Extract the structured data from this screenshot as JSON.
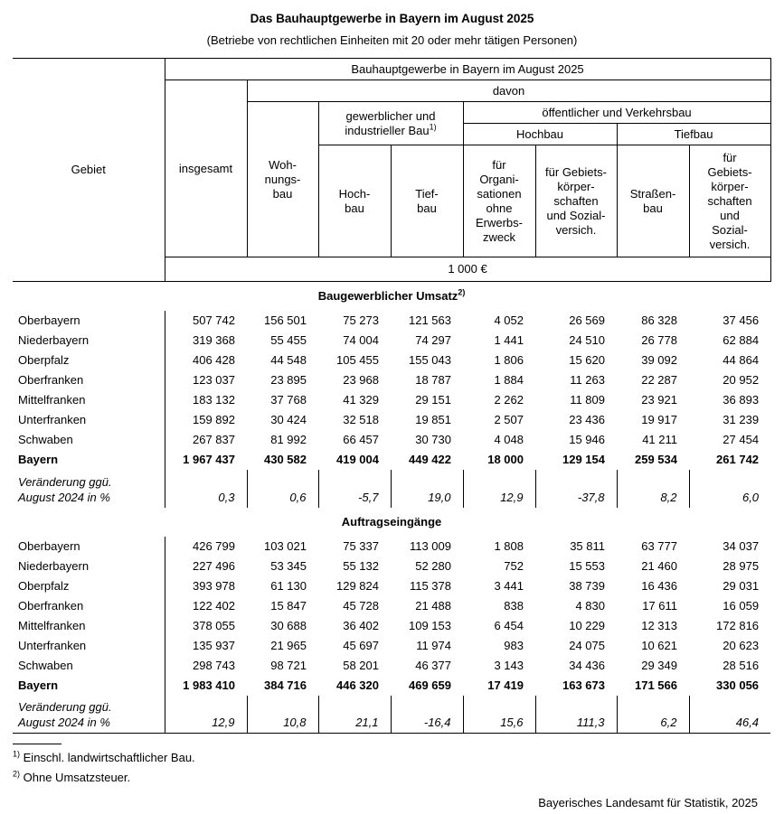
{
  "colors": {
    "text": "#000000",
    "background": "#ffffff",
    "border": "#000000"
  },
  "title": "Das Bauhauptgewerbe in Bayern im August 2025",
  "subtitle": "(Betriebe von rechtlichen Einheiten mit 20 oder mehr tätigen Personen)",
  "header": {
    "gebiet": "Gebiet",
    "top_span": "Bauhauptgewerbe in Bayern im August 2025",
    "davon": "davon",
    "insgesamt": "insgesamt",
    "wohnungsbau": "Woh-\nnungs-\nbau",
    "gewerblich": {
      "label": "gewerblicher und\nindustrieller Bau",
      "sup": "1)"
    },
    "oeffentlich": "öffentlicher und Verkehrsbau",
    "hochbau_group": "Hochbau",
    "tiefbau_group": "Tiefbau",
    "leaf_hochbau": "Hoch-\nbau",
    "leaf_tiefbau": "Tief-\nbau",
    "leaf_organisationen": "für\nOrgani-\nsationen\nohne\nErwerbs-\nzweck",
    "leaf_gebiets_hochbau": "für Gebiets-\nkörper-\nschaften\nund Sozial-\nversich.",
    "leaf_strassenbau": "Straßen-\nbau",
    "leaf_gebiets_tiefbau": "für\nGebiets-\nkörper-\nschaften\nund\nSozial-\nversich.",
    "unit": "1 000 €"
  },
  "table": {
    "sections": [
      {
        "title": "Baugewerblicher Umsatz",
        "title_sup": "2)",
        "rows": [
          {
            "label": "Oberbayern",
            "bold": false,
            "values": [
              "507 742",
              "156 501",
              "75 273",
              "121 563",
              "4 052",
              "26 569",
              "86 328",
              "37 456"
            ]
          },
          {
            "label": "Niederbayern",
            "bold": false,
            "values": [
              "319 368",
              "55 455",
              "74 004",
              "74 297",
              "1 441",
              "24 510",
              "26 778",
              "62 884"
            ]
          },
          {
            "label": "Oberpfalz",
            "bold": false,
            "values": [
              "406 428",
              "44 548",
              "105 455",
              "155 043",
              "1 806",
              "15 620",
              "39 092",
              "44 864"
            ]
          },
          {
            "label": "Oberfranken",
            "bold": false,
            "values": [
              "123 037",
              "23 895",
              "23 968",
              "18 787",
              "1 884",
              "11 263",
              "22 287",
              "20 952"
            ]
          },
          {
            "label": "Mittelfranken",
            "bold": false,
            "values": [
              "183 132",
              "37 768",
              "41 329",
              "29 151",
              "2 262",
              "11 809",
              "23 921",
              "36 893"
            ]
          },
          {
            "label": "Unterfranken",
            "bold": false,
            "values": [
              "159 892",
              "30 424",
              "32 518",
              "19 851",
              "2 507",
              "23 436",
              "19 917",
              "31 239"
            ]
          },
          {
            "label": "Schwaben",
            "bold": false,
            "values": [
              "267 837",
              "81 992",
              "66 457",
              "30 730",
              "4 048",
              "15 946",
              "41 211",
              "27 454"
            ]
          },
          {
            "label": "Bayern",
            "bold": true,
            "values": [
              "1 967 437",
              "430 582",
              "419 004",
              "449 422",
              "18 000",
              "129 154",
              "259 534",
              "261 742"
            ]
          }
        ],
        "change": {
          "label": "Veränderung ggü.\nAugust 2024 in %",
          "values": [
            "0,3",
            "0,6",
            "-5,7",
            "19,0",
            "12,9",
            "-37,8",
            "8,2",
            "6,0"
          ]
        }
      },
      {
        "title": "Auftragseingänge",
        "title_sup": "",
        "rows": [
          {
            "label": "Oberbayern",
            "bold": false,
            "values": [
              "426 799",
              "103 021",
              "75 337",
              "113 009",
              "1 808",
              "35 811",
              "63 777",
              "34 037"
            ]
          },
          {
            "label": "Niederbayern",
            "bold": false,
            "values": [
              "227 496",
              "53 345",
              "55 132",
              "52 280",
              "752",
              "15 553",
              "21 460",
              "28 975"
            ]
          },
          {
            "label": "Oberpfalz",
            "bold": false,
            "values": [
              "393 978",
              "61 130",
              "129 824",
              "115 378",
              "3 441",
              "38 739",
              "16 436",
              "29 031"
            ]
          },
          {
            "label": "Oberfranken",
            "bold": false,
            "values": [
              "122 402",
              "15 847",
              "45 728",
              "21 488",
              "838",
              "4 830",
              "17 611",
              "16 059"
            ]
          },
          {
            "label": "Mittelfranken",
            "bold": false,
            "values": [
              "378 055",
              "30 688",
              "36 402",
              "109 153",
              "6 454",
              "10 229",
              "12 313",
              "172 816"
            ]
          },
          {
            "label": "Unterfranken",
            "bold": false,
            "values": [
              "135 937",
              "21 965",
              "45 697",
              "11 974",
              "983",
              "24 075",
              "10 621",
              "20 623"
            ]
          },
          {
            "label": "Schwaben",
            "bold": false,
            "values": [
              "298 743",
              "98 721",
              "58 201",
              "46 377",
              "3 143",
              "34 436",
              "29 349",
              "28 516"
            ]
          },
          {
            "label": "Bayern",
            "bold": true,
            "values": [
              "1 983 410",
              "384 716",
              "446 320",
              "469 659",
              "17 419",
              "163 673",
              "171 566",
              "330 056"
            ]
          }
        ],
        "change": {
          "label": "Veränderung ggü.\nAugust 2024 in %",
          "values": [
            "12,9",
            "10,8",
            "21,1",
            "-16,4",
            "15,6",
            "111,3",
            "6,2",
            "46,4"
          ]
        }
      }
    ]
  },
  "footnotes": [
    {
      "marker": "1)",
      "text": "Einschl. landwirtschaftlicher Bau."
    },
    {
      "marker": "2)",
      "text": "Ohne Umsatzsteuer."
    }
  ],
  "source": "Bayerisches Landesamt für Statistik, 2025"
}
